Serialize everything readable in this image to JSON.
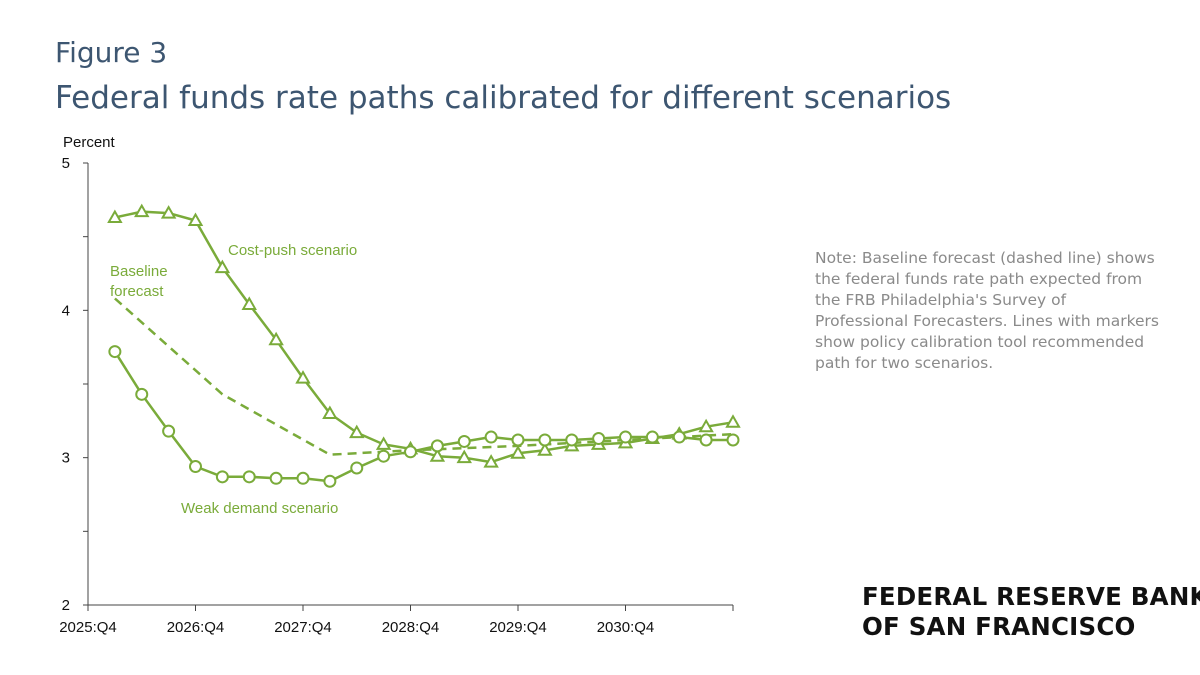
{
  "header": {
    "figure_label": "Figure 3",
    "title": "Federal funds rate paths calibrated for different scenarios"
  },
  "note": "Note: Baseline forecast (dashed line) shows the federal funds rate path expected from the FRB Philadelphia's Survey of Professional Forecasters. Lines with markers show policy calibration tool recommended path for two scenarios.",
  "brand": {
    "line1": "FEDERAL RESERVE BANK",
    "line2": "OF SAN FRANCISCO"
  },
  "colors": {
    "series": "#7aab3a",
    "title": "#3d5671",
    "note": "#8a8a8a"
  },
  "chart_data": {
    "type": "line",
    "ylabel": "Percent",
    "ylim": [
      2,
      5
    ],
    "yticks": [
      "5",
      "4",
      "3",
      "2"
    ],
    "xticks": [
      "2025:Q4",
      "2026:Q4",
      "2027:Q4",
      "2028:Q4",
      "2029:Q4",
      "2030:Q4"
    ],
    "x_start": "2025:Q4",
    "x_end": "2031:Q4",
    "grid": false,
    "annotations": {
      "cost_push": "Cost-push scenario",
      "baseline_line1": "Baseline",
      "baseline_line2": "forecast",
      "weak_demand": "Weak demand scenario"
    },
    "series": [
      {
        "name": "Cost-push scenario",
        "marker": "triangle",
        "style": "solid",
        "x": [
          "2026:Q1",
          "2026:Q2",
          "2026:Q3",
          "2026:Q4",
          "2027:Q1",
          "2027:Q2",
          "2027:Q3",
          "2027:Q4",
          "2028:Q1",
          "2028:Q2",
          "2028:Q3",
          "2028:Q4",
          "2029:Q1",
          "2029:Q2",
          "2029:Q3",
          "2029:Q4",
          "2030:Q1",
          "2030:Q2",
          "2030:Q3",
          "2030:Q4",
          "2031:Q1",
          "2031:Q2",
          "2031:Q3",
          "2031:Q4"
        ],
        "values": [
          4.63,
          4.67,
          4.66,
          4.61,
          4.29,
          4.04,
          3.8,
          3.54,
          3.3,
          3.17,
          3.09,
          3.06,
          3.01,
          3.0,
          2.97,
          3.03,
          3.05,
          3.08,
          3.09,
          3.1,
          3.13,
          3.16,
          3.21,
          3.24
        ]
      },
      {
        "name": "Baseline forecast",
        "marker": "none",
        "style": "dashed",
        "x": [
          "2026:Q1",
          "2027:Q1",
          "2028:Q1",
          "2028:Q4",
          "2029:Q4",
          "2030:Q4",
          "2031:Q4"
        ],
        "values": [
          4.08,
          3.43,
          3.02,
          3.05,
          3.08,
          3.12,
          3.16
        ]
      },
      {
        "name": "Weak demand scenario",
        "marker": "circle",
        "style": "solid",
        "x": [
          "2026:Q1",
          "2026:Q2",
          "2026:Q3",
          "2026:Q4",
          "2027:Q1",
          "2027:Q2",
          "2027:Q3",
          "2027:Q4",
          "2028:Q1",
          "2028:Q2",
          "2028:Q3",
          "2028:Q4",
          "2029:Q1",
          "2029:Q2",
          "2029:Q3",
          "2029:Q4",
          "2030:Q1",
          "2030:Q2",
          "2030:Q3",
          "2030:Q4",
          "2031:Q1",
          "2031:Q2",
          "2031:Q3",
          "2031:Q4"
        ],
        "values": [
          3.72,
          3.43,
          3.18,
          2.94,
          2.87,
          2.87,
          2.86,
          2.86,
          2.84,
          2.93,
          3.01,
          3.04,
          3.08,
          3.11,
          3.14,
          3.12,
          3.12,
          3.12,
          3.13,
          3.14,
          3.14,
          3.14,
          3.12,
          3.12
        ]
      }
    ]
  }
}
